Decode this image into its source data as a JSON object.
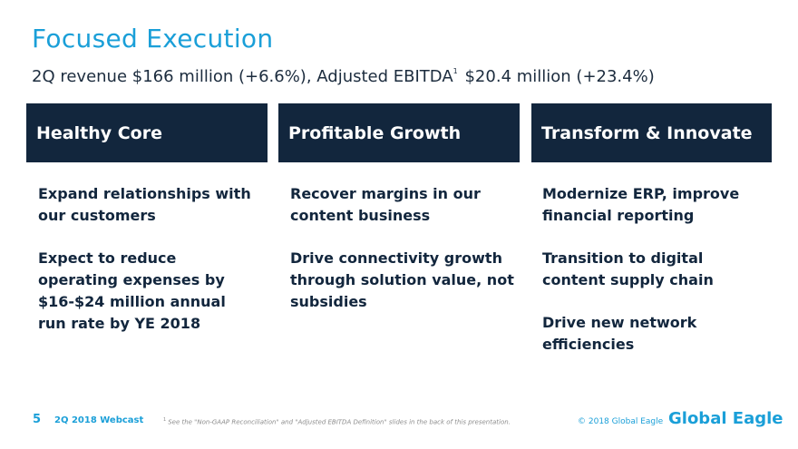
{
  "slide": {
    "title": "Focused Execution",
    "subtitle_part1": "2Q revenue $166 million (+6.6%), Adjusted EBITDA",
    "subtitle_sup": "1",
    "subtitle_part2": "$20.4 million (+23.4%)"
  },
  "columns": [
    {
      "header": "Healthy Core",
      "items": [
        "Expand relationships with our customers",
        "Expect to reduce operating expenses by $16-$24 million annual run rate by YE 2018"
      ]
    },
    {
      "header": "Profitable Growth",
      "items": [
        "Recover margins in our content business",
        "Drive connectivity growth through solution value, not subsidies"
      ]
    },
    {
      "header": "Transform & Innovate",
      "items": [
        "Modernize ERP, improve financial reporting",
        "Transition to digital content supply chain",
        "Drive new network efficiencies"
      ]
    }
  ],
  "footer": {
    "page_number": "5",
    "event": "2Q 2018 Webcast",
    "footnote_marker": "1",
    "footnote": "See the \"Non-GAAP Reconciliation\" and \"Adjusted EBITDA Definition\" slides in the back of this presentation.",
    "copyright": "© 2018 Global Eagle",
    "logo_text": "Global Eagle"
  },
  "colors": {
    "accent_blue": "#1a9fd8",
    "navy": "#12263d"
  }
}
